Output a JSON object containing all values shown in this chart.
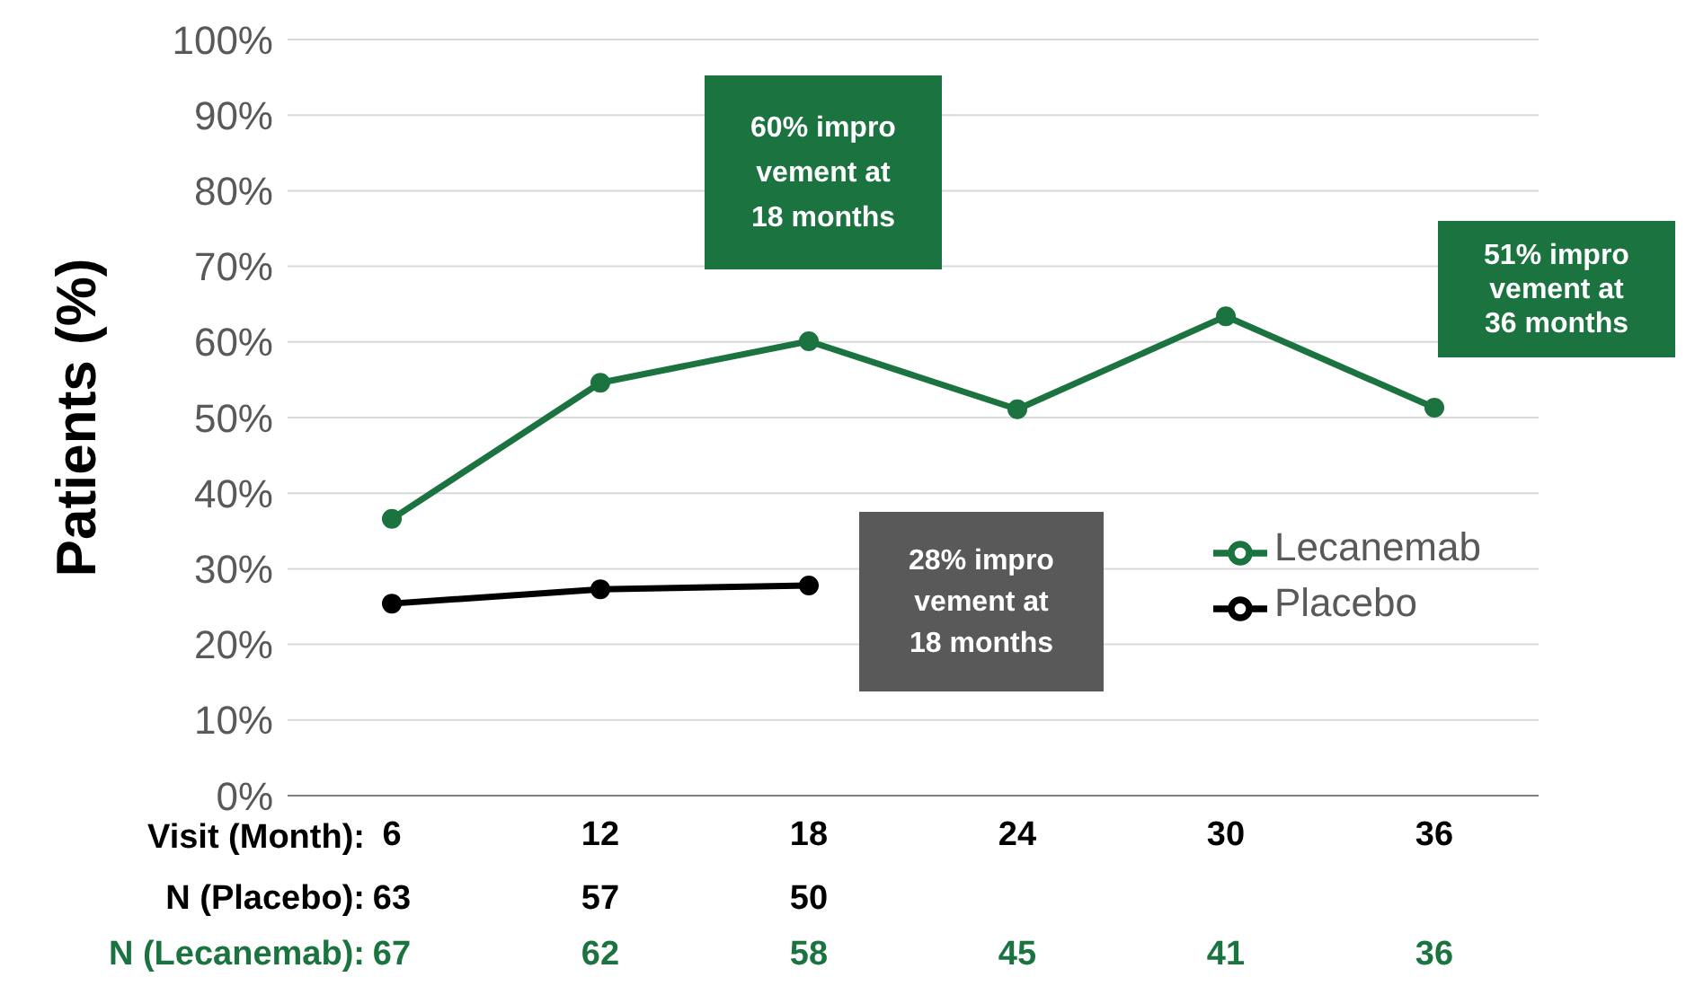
{
  "chart_data": {
    "type": "line",
    "ylabel": "Patients (%)",
    "xlabel": "Visit (Month):",
    "categories": [
      "6",
      "12",
      "18",
      "24",
      "30",
      "36"
    ],
    "series": [
      {
        "name": "Lecanemab",
        "color": "#1b7340",
        "values": [
          36.6,
          54.6,
          60.1,
          51.1,
          63.4,
          51.3
        ]
      },
      {
        "name": "Placebo",
        "color": "#000000",
        "values": [
          25.4,
          27.3,
          27.8,
          null,
          null,
          null
        ]
      }
    ],
    "ylim": [
      0,
      100
    ],
    "yticks": [
      {
        "value": 0,
        "label": "0%"
      },
      {
        "value": 10,
        "label": "10%"
      },
      {
        "value": 20,
        "label": "20%"
      },
      {
        "value": 30,
        "label": "30%"
      },
      {
        "value": 40,
        "label": "40%"
      },
      {
        "value": 50,
        "label": "50%"
      },
      {
        "value": 60,
        "label": "60%"
      },
      {
        "value": 70,
        "label": "70%"
      },
      {
        "value": 80,
        "label": "80%"
      },
      {
        "value": 90,
        "label": "90%"
      },
      {
        "value": 100,
        "label": "100%"
      }
    ],
    "grid": "y",
    "legend": "right",
    "marker": "circle",
    "line_style": "solid",
    "annotations": [
      "60% improvement at 18 months",
      "51% improvement at 36 months",
      "28% improvement at 18 months",
      "N (Placebo):",
      "63",
      "57",
      "50",
      "N (Lecanemab):",
      "67",
      "62",
      "58",
      "45",
      "41",
      "36"
    ]
  }
}
